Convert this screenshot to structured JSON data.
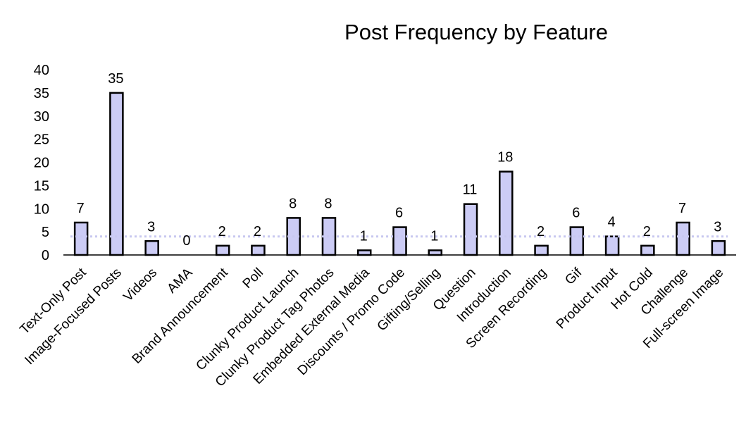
{
  "chart_data": {
    "type": "bar",
    "title": "Post Frequency by Feature",
    "xlabel": "",
    "ylabel": "",
    "ylim": [
      0,
      40
    ],
    "yticks": [
      0,
      5,
      10,
      15,
      20,
      25,
      30,
      35,
      40
    ],
    "grid": false,
    "legend": "none",
    "categories": [
      "Text-Only Post",
      "Image-Focused Posts",
      "Videos",
      "AMA",
      "Brand Announcement",
      "Poll",
      "Clunky Product Launch",
      "Clunky Product Tag Photos",
      "Embedded External Media",
      "Discounts / Promo Code",
      "Gifting/Selling",
      "Question",
      "Introduction",
      "Screen Recording",
      "Gif",
      "Product Input",
      "Hot Cold",
      "Challenge",
      "Full-screen Image"
    ],
    "values": [
      7,
      35,
      3,
      0,
      2,
      2,
      8,
      8,
      1,
      6,
      1,
      11,
      18,
      2,
      6,
      4,
      2,
      7,
      3
    ],
    "reference_line": 4,
    "colors": {
      "bar_fill": "#ccccf5",
      "bar_stroke": "#000000",
      "reference_line": "#c8c8f0"
    }
  }
}
